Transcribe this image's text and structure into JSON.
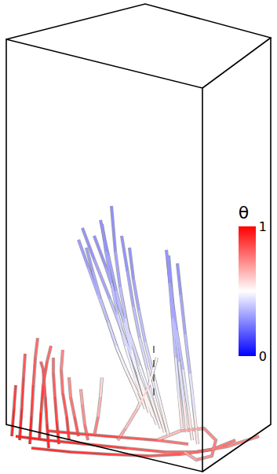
{
  "chart_data": {
    "type": "streamlines",
    "tick_labels": false,
    "xlim": [
      0,
      353
    ],
    "ylim": [
      603,
      0
    ],
    "colorbar": {
      "title": "θ",
      "range": [
        0,
        1
      ],
      "ticks": [
        0,
        1
      ]
    },
    "streamlines": [
      {
        "x": [
          25,
          28,
          30,
          32
        ],
        "y": [
          560,
          520,
          480,
          450
        ],
        "theta": [
          0.95,
          0.9,
          0.85,
          0.8
        ]
      },
      {
        "x": [
          38,
          40,
          42,
          45,
          48
        ],
        "y": [
          565,
          530,
          490,
          455,
          430
        ],
        "theta": [
          0.95,
          0.9,
          0.85,
          0.8,
          0.78
        ]
      },
      {
        "x": [
          50,
          52,
          55,
          60,
          65
        ],
        "y": [
          560,
          525,
          490,
          460,
          440
        ],
        "theta": [
          0.95,
          0.9,
          0.85,
          0.8,
          0.78
        ]
      },
      {
        "x": [
          62,
          60,
          58,
          55,
          52
        ],
        "y": [
          570,
          540,
          505,
          470,
          460
        ],
        "theta": [
          0.95,
          0.9,
          0.85,
          0.82,
          0.8
        ]
      },
      {
        "x": [
          75,
          72,
          70,
          68,
          68
        ],
        "y": [
          565,
          535,
          505,
          475,
          455
        ],
        "theta": [
          0.92,
          0.88,
          0.84,
          0.8,
          0.76
        ]
      },
      {
        "x": [
          88,
          85,
          80,
          78,
          80
        ],
        "y": [
          560,
          530,
          500,
          470,
          445
        ],
        "theta": [
          0.9,
          0.85,
          0.8,
          0.76,
          0.72
        ]
      },
      {
        "x": [
          100,
          95,
          90,
          88
        ],
        "y": [
          555,
          530,
          505,
          480
        ],
        "theta": [
          0.85,
          0.8,
          0.75,
          0.7
        ]
      },
      {
        "x": [
          112,
          108,
          105,
          103
        ],
        "y": [
          560,
          540,
          515,
          495
        ],
        "theta": [
          0.8,
          0.75,
          0.7,
          0.65
        ]
      },
      {
        "x": [
          120,
          125,
          128,
          130
        ],
        "y": [
          555,
          530,
          505,
          480
        ],
        "theta": [
          0.8,
          0.7,
          0.6,
          0.55
        ]
      },
      {
        "x": [
          15,
          18,
          20
        ],
        "y": [
          555,
          520,
          490
        ],
        "theta": [
          0.95,
          0.9,
          0.85
        ]
      },
      {
        "x": [
          200,
          185,
          170,
          155,
          140,
          120,
          105
        ],
        "y": [
          540,
          500,
          460,
          420,
          380,
          330,
          290
        ],
        "theta": [
          0.55,
          0.5,
          0.45,
          0.4,
          0.35,
          0.3,
          0.28
        ]
      },
      {
        "x": [
          205,
          192,
          178,
          165,
          150,
          135,
          120
        ],
        "y": [
          545,
          505,
          465,
          425,
          385,
          340,
          300
        ],
        "theta": [
          0.55,
          0.5,
          0.45,
          0.4,
          0.35,
          0.3,
          0.28
        ]
      },
      {
        "x": [
          195,
          180,
          168,
          158,
          148,
          138,
          128
        ],
        "y": [
          530,
          490,
          450,
          410,
          370,
          325,
          280
        ],
        "theta": [
          0.55,
          0.5,
          0.45,
          0.4,
          0.35,
          0.3,
          0.27
        ]
      },
      {
        "x": [
          190,
          178,
          168,
          160,
          153,
          147,
          142
        ],
        "y": [
          525,
          485,
          445,
          405,
          365,
          320,
          262
        ],
        "theta": [
          0.55,
          0.5,
          0.45,
          0.4,
          0.35,
          0.3,
          0.26
        ]
      },
      {
        "x": [
          210,
          198,
          188,
          178,
          170,
          162,
          155
        ],
        "y": [
          550,
          510,
          470,
          430,
          390,
          345,
          300
        ],
        "theta": [
          0.55,
          0.5,
          0.45,
          0.4,
          0.35,
          0.3,
          0.28
        ]
      },
      {
        "x": [
          185,
          172,
          160,
          150,
          142,
          135,
          130
        ],
        "y": [
          520,
          480,
          440,
          400,
          360,
          320,
          285
        ],
        "theta": [
          0.55,
          0.5,
          0.45,
          0.4,
          0.35,
          0.3,
          0.28
        ]
      },
      {
        "x": [
          215,
          205,
          195,
          185,
          177,
          170,
          165
        ],
        "y": [
          555,
          515,
          475,
          435,
          395,
          355,
          315
        ],
        "theta": [
          0.55,
          0.5,
          0.45,
          0.4,
          0.35,
          0.3,
          0.28
        ]
      },
      {
        "x": [
          180,
          165,
          150,
          138,
          125,
          112,
          100
        ],
        "y": [
          515,
          480,
          445,
          410,
          375,
          340,
          305
        ],
        "theta": [
          0.55,
          0.5,
          0.45,
          0.4,
          0.36,
          0.32,
          0.3
        ]
      },
      {
        "x": [
          175,
          160,
          148,
          138,
          128,
          118,
          110
        ],
        "y": [
          500,
          470,
          440,
          410,
          380,
          345,
          315
        ],
        "theta": [
          0.55,
          0.5,
          0.45,
          0.4,
          0.36,
          0.32,
          0.3
        ]
      },
      {
        "x": [
          150,
          160,
          175,
          190,
          200
        ],
        "y": [
          560,
          545,
          520,
          490,
          455
        ],
        "theta": [
          0.7,
          0.65,
          0.6,
          0.55,
          0.5
        ]
      },
      {
        "x": [
          245,
          240,
          233,
          225,
          218,
          212
        ],
        "y": [
          560,
          520,
          470,
          420,
          370,
          318
        ],
        "theta": [
          0.6,
          0.5,
          0.4,
          0.35,
          0.3,
          0.28
        ]
      },
      {
        "x": [
          238,
          234,
          228,
          222,
          218,
          215
        ],
        "y": [
          550,
          510,
          460,
          410,
          365,
          325
        ],
        "theta": [
          0.6,
          0.5,
          0.4,
          0.35,
          0.3,
          0.28
        ]
      },
      {
        "x": [
          232,
          228,
          224,
          220,
          216,
          214
        ],
        "y": [
          545,
          505,
          455,
          405,
          360,
          330
        ],
        "theta": [
          0.6,
          0.5,
          0.4,
          0.35,
          0.3,
          0.28
        ]
      },
      {
        "x": [
          252,
          248,
          242,
          236,
          230,
          226
        ],
        "y": [
          565,
          525,
          475,
          425,
          375,
          335
        ],
        "theta": [
          0.6,
          0.5,
          0.4,
          0.35,
          0.3,
          0.28
        ]
      },
      {
        "x": [
          20,
          60,
          110,
          160,
          210,
          250,
          290,
          330
        ],
        "y": [
          555,
          560,
          565,
          570,
          575,
          575,
          568,
          555
        ],
        "theta": [
          0.95,
          0.92,
          0.9,
          0.85,
          0.8,
          0.78,
          0.75,
          0.72
        ]
      },
      {
        "x": [
          40,
          90,
          140,
          190,
          230,
          270,
          300
        ],
        "y": [
          570,
          575,
          578,
          580,
          578,
          572,
          560
        ],
        "theta": [
          0.92,
          0.9,
          0.88,
          0.85,
          0.8,
          0.78,
          0.75
        ]
      },
      {
        "x": [
          200,
          230,
          260,
          275,
          270,
          250,
          235
        ],
        "y": [
          560,
          548,
          545,
          560,
          580,
          585,
          575
        ],
        "theta": [
          0.6,
          0.65,
          0.7,
          0.75,
          0.75,
          0.7,
          0.65
        ]
      },
      {
        "x": [
          60,
          100,
          150,
          200,
          240
        ],
        "y": [
          548,
          552,
          556,
          560,
          565
        ],
        "theta": [
          0.9,
          0.88,
          0.85,
          0.8,
          0.75
        ]
      }
    ]
  }
}
